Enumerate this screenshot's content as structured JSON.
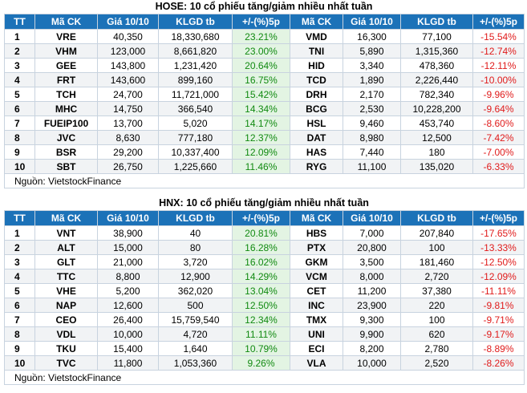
{
  "tables": [
    {
      "title": "HOSE: 10 cổ phiếu tăng/giảm nhiều nhất tuần",
      "headers": [
        "TT",
        "Mã CK",
        "Giá 10/10",
        "KLGD tb",
        "+/-(%)5p",
        "Mã CK",
        "Giá 10/10",
        "KLGD tb",
        "+/-(%)5p"
      ],
      "rows": [
        [
          "1",
          "VRE",
          "40,350",
          "18,330,680",
          "23.21%",
          "VMD",
          "16,300",
          "77,100",
          "-15.54%"
        ],
        [
          "2",
          "VHM",
          "123,000",
          "8,661,820",
          "23.00%",
          "TNI",
          "5,890",
          "1,315,360",
          "-12.74%"
        ],
        [
          "3",
          "GEE",
          "143,800",
          "1,231,420",
          "20.64%",
          "HID",
          "3,340",
          "478,360",
          "-12.11%"
        ],
        [
          "4",
          "FRT",
          "143,600",
          "899,160",
          "16.75%",
          "TCD",
          "1,890",
          "2,226,440",
          "-10.00%"
        ],
        [
          "5",
          "TCH",
          "24,700",
          "11,721,000",
          "15.42%",
          "DRH",
          "2,170",
          "782,340",
          "-9.96%"
        ],
        [
          "6",
          "MHC",
          "14,750",
          "366,540",
          "14.34%",
          "BCG",
          "2,530",
          "10,228,200",
          "-9.64%"
        ],
        [
          "7",
          "FUEIP100",
          "13,700",
          "5,020",
          "14.17%",
          "HSL",
          "9,460",
          "453,740",
          "-8.60%"
        ],
        [
          "8",
          "JVC",
          "8,630",
          "777,180",
          "12.37%",
          "DAT",
          "8,980",
          "12,500",
          "-7.42%"
        ],
        [
          "9",
          "BSR",
          "29,200",
          "10,337,400",
          "12.09%",
          "HAS",
          "7,440",
          "180",
          "-7.00%"
        ],
        [
          "10",
          "SBT",
          "26,750",
          "1,225,660",
          "11.46%",
          "RYG",
          "11,100",
          "135,020",
          "-6.33%"
        ]
      ],
      "source": "Nguồn: VietstockFinance"
    },
    {
      "title": "HNX: 10 cổ phiếu tăng/giảm nhiều nhất tuần",
      "headers": [
        "TT",
        "Mã CK",
        "Giá 10/10",
        "KLGD tb",
        "+/-(%)5p",
        "Mã CK",
        "Giá 10/10",
        "KLGD tb",
        "+/-(%)5p"
      ],
      "rows": [
        [
          "1",
          "VNT",
          "38,900",
          "40",
          "20.81%",
          "HBS",
          "7,000",
          "207,840",
          "-17.65%"
        ],
        [
          "2",
          "ALT",
          "15,000",
          "80",
          "16.28%",
          "PTX",
          "20,800",
          "100",
          "-13.33%"
        ],
        [
          "3",
          "GLT",
          "21,000",
          "3,720",
          "16.02%",
          "GKM",
          "3,500",
          "181,460",
          "-12.50%"
        ],
        [
          "4",
          "TTC",
          "8,800",
          "12,900",
          "14.29%",
          "VCM",
          "8,000",
          "2,720",
          "-12.09%"
        ],
        [
          "5",
          "VHE",
          "5,200",
          "362,020",
          "13.04%",
          "CET",
          "11,200",
          "37,380",
          "-11.11%"
        ],
        [
          "6",
          "NAP",
          "12,600",
          "500",
          "12.50%",
          "INC",
          "23,900",
          "220",
          "-9.81%"
        ],
        [
          "7",
          "CEO",
          "26,400",
          "15,759,540",
          "12.34%",
          "TMX",
          "9,300",
          "100",
          "-9.71%"
        ],
        [
          "8",
          "VDL",
          "10,000",
          "4,720",
          "11.11%",
          "UNI",
          "9,900",
          "620",
          "-9.17%"
        ],
        [
          "9",
          "TKU",
          "15,400",
          "1,640",
          "10.79%",
          "ECI",
          "8,200",
          "2,780",
          "-8.89%"
        ],
        [
          "10",
          "TVC",
          "11,800",
          "1,053,360",
          "9.26%",
          "VLA",
          "10,000",
          "2,520",
          "-8.26%"
        ]
      ],
      "source": "Nguồn: VietstockFinance"
    }
  ]
}
